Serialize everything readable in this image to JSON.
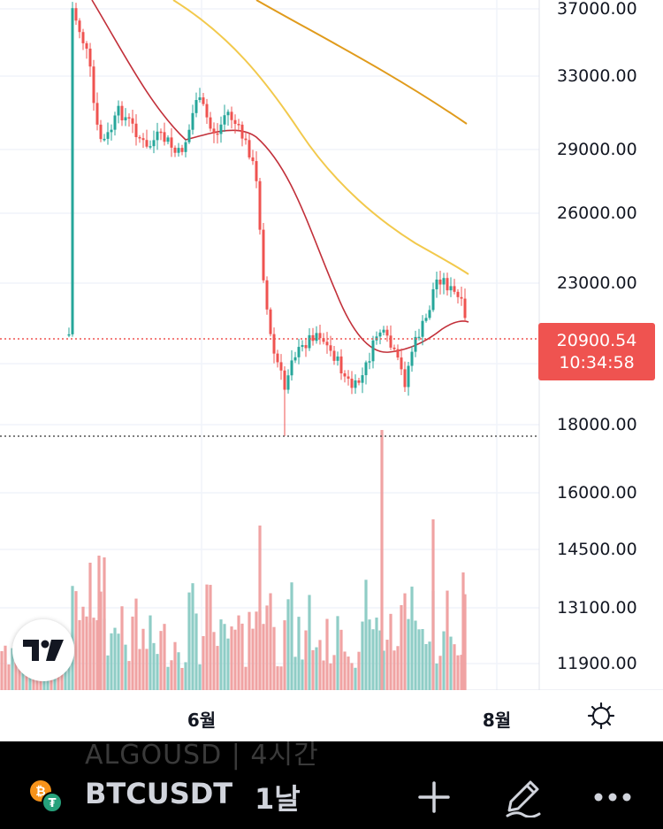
{
  "symbol": "BTCUSDT",
  "interval": "1날",
  "ghost_symbol": "ALGOUSD | 4시간",
  "current_price": "20900.54",
  "countdown": "10:34:58",
  "price_axis": [
    {
      "value": 37000,
      "label": "37000.00"
    },
    {
      "value": 33000,
      "label": "33000.00"
    },
    {
      "value": 29000,
      "label": "29000.00"
    },
    {
      "value": 26000,
      "label": "26000.00"
    },
    {
      "value": 23000,
      "label": "23000.00"
    },
    {
      "value": 18000,
      "label": "18000.00"
    },
    {
      "value": 16000,
      "label": "16000.00"
    },
    {
      "value": 14500,
      "label": "14500.00"
    },
    {
      "value": 13100,
      "label": "13100.00"
    },
    {
      "value": 11900,
      "label": "11900.00"
    }
  ],
  "time_axis": [
    {
      "label": "6월"
    },
    {
      "label": "8월"
    }
  ],
  "colors": {
    "up": "#26a69a",
    "down": "#ef5350",
    "up_volume": "#8fcdc6",
    "down_volume": "#f0a3a3",
    "ma_short": "#c2303a",
    "ma_mid": "#f2c94c",
    "ma_long": "#e09b1c",
    "price_tag": "#ef5350"
  },
  "icons": {
    "logo": "tradingview-logo",
    "settings": "gear-icon",
    "add": "plus-icon",
    "draw": "pencil-icon",
    "more": "more-dots-icon",
    "symbol": "bitcoin-tether-icon"
  }
}
